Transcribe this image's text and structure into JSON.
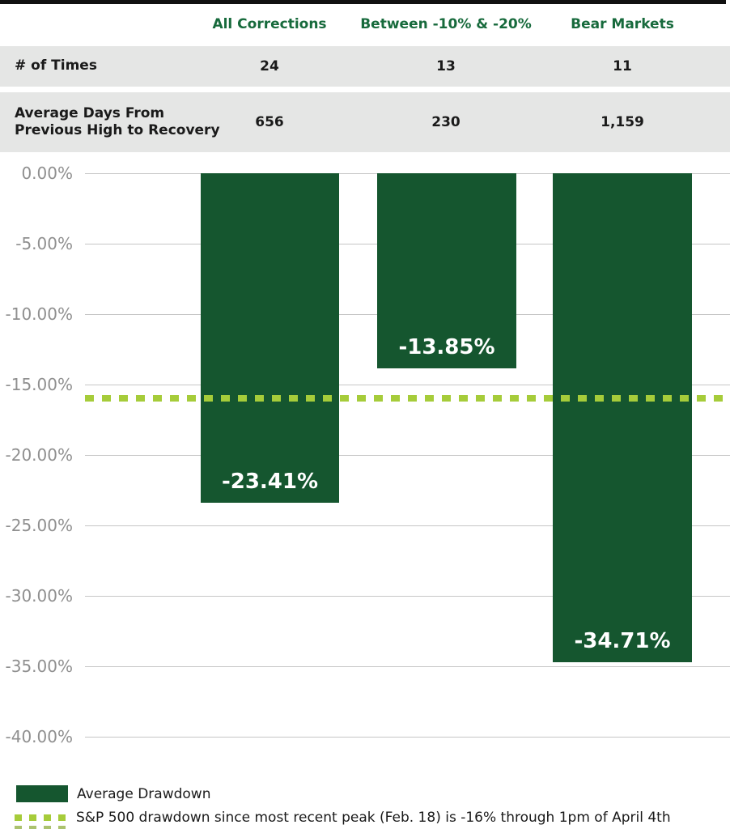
{
  "table": {
    "header": {
      "columns": [
        "All Corrections",
        "Between -10% & -20%",
        "Bear Markets"
      ],
      "text_color": "#176a3c"
    },
    "rows": [
      {
        "label": "# of Times",
        "values": [
          "24",
          "13",
          "11"
        ]
      },
      {
        "label_line1": "Average Days From",
        "label_line2": "Previous High to Recovery",
        "values": [
          "656",
          "230",
          "1,159"
        ]
      }
    ],
    "band_color": "#e5e6e5"
  },
  "chart_data": {
    "type": "bar",
    "categories": [
      "All Corrections",
      "Between -10% & -20%",
      "Bear Markets"
    ],
    "values": [
      -23.41,
      -13.85,
      -34.71
    ],
    "bar_labels": [
      "-23.41%",
      "-13.85%",
      "-34.71%"
    ],
    "series_name": "Average Drawdown",
    "bar_color": "#15562f",
    "y_ticks": [
      "0.00%",
      "-5.00%",
      "-10.00%",
      "-15.00%",
      "-20.00%",
      "-25.00%",
      "-30.00%",
      "-35.00%",
      "-40.00%"
    ],
    "ylim": [
      -40,
      0
    ],
    "grid": true,
    "gridline_color": "#c6c6c6",
    "axis_label_color": "#8f8f8f",
    "legend_position": "bottom-left",
    "reference_line": {
      "value": -16,
      "style": "dashed",
      "color": "#a6cc3a",
      "label": "S&P 500 drawdown since most recent peak (Feb. 18) is -16% through 1pm of April 4th"
    }
  },
  "legend": {
    "items": [
      {
        "swatch": "solid-dark-green",
        "label": "Average Drawdown"
      },
      {
        "swatch": "dashed-light-green",
        "label": "S&P 500 drawdown since most recent peak (Feb. 18) is -16% through 1pm of April 4th"
      }
    ]
  }
}
